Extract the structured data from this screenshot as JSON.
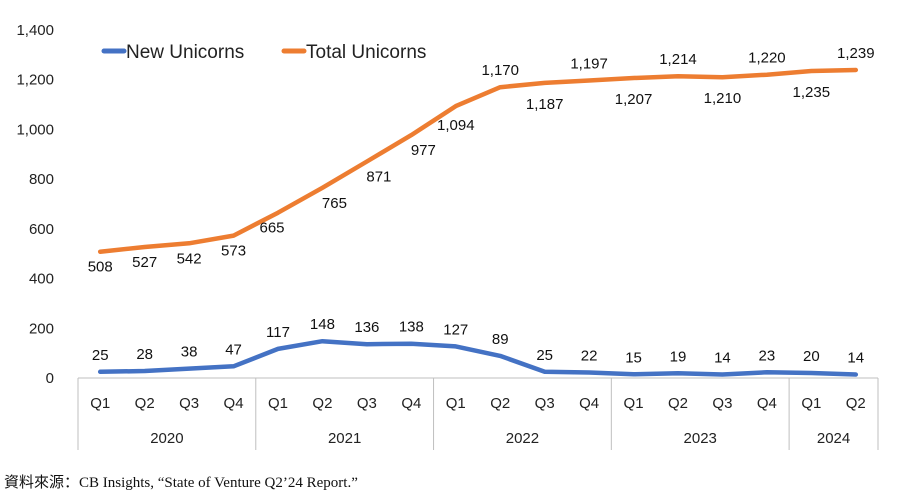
{
  "chart_data": {
    "type": "line",
    "categories": [
      "Q1",
      "Q2",
      "Q3",
      "Q4",
      "Q1",
      "Q2",
      "Q3",
      "Q4",
      "Q1",
      "Q2",
      "Q3",
      "Q4",
      "Q1",
      "Q2",
      "Q3",
      "Q4",
      "Q1",
      "Q2"
    ],
    "year_groups": [
      {
        "label": "2020",
        "count": 4
      },
      {
        "label": "2021",
        "count": 4
      },
      {
        "label": "2022",
        "count": 4
      },
      {
        "label": "2023",
        "count": 4
      },
      {
        "label": "2024",
        "count": 2
      }
    ],
    "series": [
      {
        "name": "New Unicorns",
        "color": "#4472C4",
        "values": [
          25,
          28,
          38,
          47,
          117,
          148,
          136,
          138,
          127,
          89,
          25,
          22,
          15,
          19,
          14,
          23,
          20,
          14
        ],
        "labels": [
          "25",
          "28",
          "38",
          "47",
          "117",
          "148",
          "136",
          "138",
          "127",
          "89",
          "25",
          "22",
          "15",
          "19",
          "14",
          "23",
          "20",
          "14"
        ]
      },
      {
        "name": "Total Unicorns",
        "color": "#ED7D31",
        "values": [
          508,
          527,
          542,
          573,
          665,
          765,
          871,
          977,
          1094,
          1170,
          1187,
          1197,
          1207,
          1214,
          1210,
          1220,
          1235,
          1239
        ],
        "labels": [
          "508",
          "527",
          "542",
          "573",
          "665",
          "765",
          "871",
          "977",
          "1,094",
          "1,170",
          "1,187",
          "1,197",
          "1,207",
          "1,214",
          "1,210",
          "1,220",
          "1,235",
          "1,239"
        ]
      }
    ],
    "ylim": [
      0,
      1400
    ],
    "yticks": [
      0,
      200,
      400,
      600,
      800,
      1000,
      1200,
      1400
    ],
    "ytick_labels": [
      "0",
      "200",
      "400",
      "600",
      "800",
      "1,000",
      "1,200",
      "1,400"
    ],
    "legend": "top-left",
    "grid": false
  },
  "source": "資料來源：CB Insights, “State of Venture Q2’24 Report.”"
}
